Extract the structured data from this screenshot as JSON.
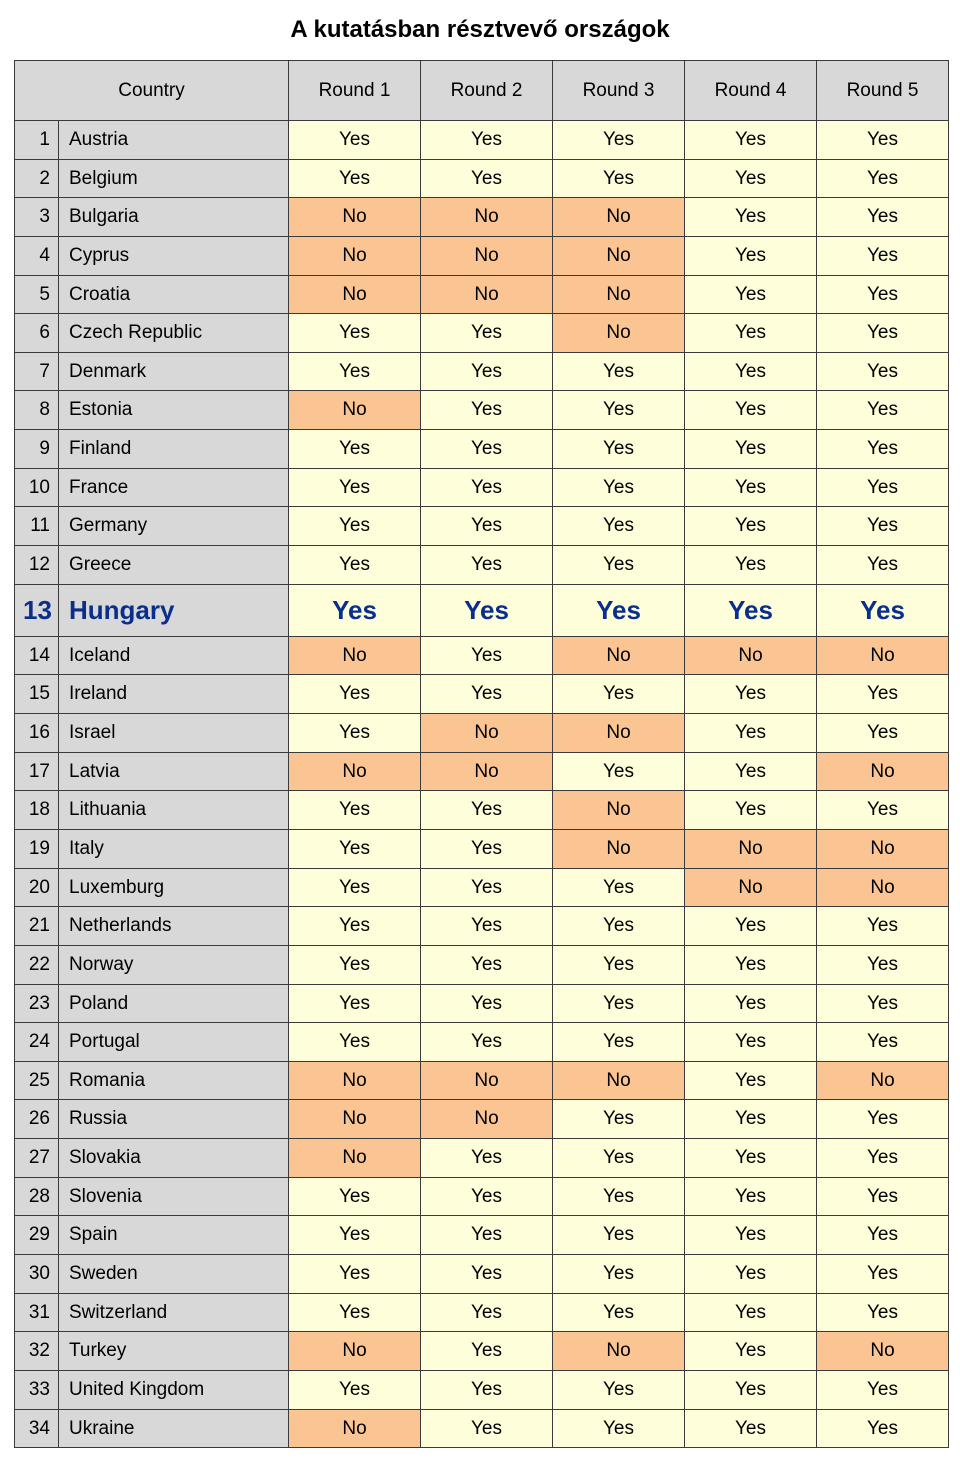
{
  "title": "A kutatásban résztvevő országok",
  "columns": {
    "country": "Country",
    "r1": "Round 1",
    "r2": "Round 2",
    "r3": "Round 3",
    "r4": "Round 4",
    "r5": "Round 5"
  },
  "cell_colors": {
    "Yes": "#feffda",
    "No": "#fac593",
    "header_bg": "#d8d8d8",
    "border": "#3a3a3a",
    "highlight_text": "#0a2e8c"
  },
  "rows": [
    {
      "n": "1",
      "country": "Austria",
      "r": [
        "Yes",
        "Yes",
        "Yes",
        "Yes",
        "Yes"
      ],
      "hl": false
    },
    {
      "n": "2",
      "country": "Belgium",
      "r": [
        "Yes",
        "Yes",
        "Yes",
        "Yes",
        "Yes"
      ],
      "hl": false
    },
    {
      "n": "3",
      "country": "Bulgaria",
      "r": [
        "No",
        "No",
        "No",
        "Yes",
        "Yes"
      ],
      "hl": false
    },
    {
      "n": "4",
      "country": "Cyprus",
      "r": [
        "No",
        "No",
        "No",
        "Yes",
        "Yes"
      ],
      "hl": false
    },
    {
      "n": "5",
      "country": "Croatia",
      "r": [
        "No",
        "No",
        "No",
        "Yes",
        "Yes"
      ],
      "hl": false
    },
    {
      "n": "6",
      "country": "Czech Republic",
      "r": [
        "Yes",
        "Yes",
        "No",
        "Yes",
        "Yes"
      ],
      "hl": false
    },
    {
      "n": "7",
      "country": "Denmark",
      "r": [
        "Yes",
        "Yes",
        "Yes",
        "Yes",
        "Yes"
      ],
      "hl": false
    },
    {
      "n": "8",
      "country": "Estonia",
      "r": [
        "No",
        "Yes",
        "Yes",
        "Yes",
        "Yes"
      ],
      "hl": false
    },
    {
      "n": "9",
      "country": "Finland",
      "r": [
        "Yes",
        "Yes",
        "Yes",
        "Yes",
        "Yes"
      ],
      "hl": false
    },
    {
      "n": "10",
      "country": "France",
      "r": [
        "Yes",
        "Yes",
        "Yes",
        "Yes",
        "Yes"
      ],
      "hl": false
    },
    {
      "n": "11",
      "country": "Germany",
      "r": [
        "Yes",
        "Yes",
        "Yes",
        "Yes",
        "Yes"
      ],
      "hl": false
    },
    {
      "n": "12",
      "country": "Greece",
      "r": [
        "Yes",
        "Yes",
        "Yes",
        "Yes",
        "Yes"
      ],
      "hl": false
    },
    {
      "n": "13",
      "country": "Hungary",
      "r": [
        "Yes",
        "Yes",
        "Yes",
        "Yes",
        "Yes"
      ],
      "hl": true
    },
    {
      "n": "14",
      "country": "Iceland",
      "r": [
        "No",
        "Yes",
        "No",
        "No",
        "No"
      ],
      "hl": false
    },
    {
      "n": "15",
      "country": "Ireland",
      "r": [
        "Yes",
        "Yes",
        "Yes",
        "Yes",
        "Yes"
      ],
      "hl": false
    },
    {
      "n": "16",
      "country": "Israel",
      "r": [
        "Yes",
        "No",
        "No",
        "Yes",
        "Yes"
      ],
      "hl": false
    },
    {
      "n": "17",
      "country": "Latvia",
      "r": [
        "No",
        "No",
        "Yes",
        "Yes",
        "No"
      ],
      "hl": false
    },
    {
      "n": "18",
      "country": "Lithuania",
      "r": [
        "Yes",
        "Yes",
        "No",
        "Yes",
        "Yes"
      ],
      "hl": false
    },
    {
      "n": "19",
      "country": "Italy",
      "r": [
        "Yes",
        "Yes",
        "No",
        "No",
        "No"
      ],
      "hl": false
    },
    {
      "n": "20",
      "country": "Luxemburg",
      "r": [
        "Yes",
        "Yes",
        "Yes",
        "No",
        "No"
      ],
      "hl": false
    },
    {
      "n": "21",
      "country": "Netherlands",
      "r": [
        "Yes",
        "Yes",
        "Yes",
        "Yes",
        "Yes"
      ],
      "hl": false
    },
    {
      "n": "22",
      "country": "Norway",
      "r": [
        "Yes",
        "Yes",
        "Yes",
        "Yes",
        "Yes"
      ],
      "hl": false
    },
    {
      "n": "23",
      "country": "Poland",
      "r": [
        "Yes",
        "Yes",
        "Yes",
        "Yes",
        "Yes"
      ],
      "hl": false
    },
    {
      "n": "24",
      "country": "Portugal",
      "r": [
        "Yes",
        "Yes",
        "Yes",
        "Yes",
        "Yes"
      ],
      "hl": false
    },
    {
      "n": "25",
      "country": "Romania",
      "r": [
        "No",
        "No",
        "No",
        "Yes",
        "No"
      ],
      "hl": false
    },
    {
      "n": "26",
      "country": "Russia",
      "r": [
        "No",
        "No",
        "Yes",
        "Yes",
        "Yes"
      ],
      "hl": false
    },
    {
      "n": "27",
      "country": "Slovakia",
      "r": [
        "No",
        "Yes",
        "Yes",
        "Yes",
        "Yes"
      ],
      "hl": false
    },
    {
      "n": "28",
      "country": "Slovenia",
      "r": [
        "Yes",
        "Yes",
        "Yes",
        "Yes",
        "Yes"
      ],
      "hl": false
    },
    {
      "n": "29",
      "country": "Spain",
      "r": [
        "Yes",
        "Yes",
        "Yes",
        "Yes",
        "Yes"
      ],
      "hl": false
    },
    {
      "n": "30",
      "country": "Sweden",
      "r": [
        "Yes",
        "Yes",
        "Yes",
        "Yes",
        "Yes"
      ],
      "hl": false
    },
    {
      "n": "31",
      "country": "Switzerland",
      "r": [
        "Yes",
        "Yes",
        "Yes",
        "Yes",
        "Yes"
      ],
      "hl": false
    },
    {
      "n": "32",
      "country": "Turkey",
      "r": [
        "No",
        "Yes",
        "No",
        "Yes",
        "No"
      ],
      "hl": false
    },
    {
      "n": "33",
      "country": "United Kingdom",
      "r": [
        "Yes",
        "Yes",
        "Yes",
        "Yes",
        "Yes"
      ],
      "hl": false
    },
    {
      "n": "34",
      "country": "Ukraine",
      "r": [
        "No",
        "Yes",
        "Yes",
        "Yes",
        "Yes"
      ],
      "hl": false
    }
  ]
}
